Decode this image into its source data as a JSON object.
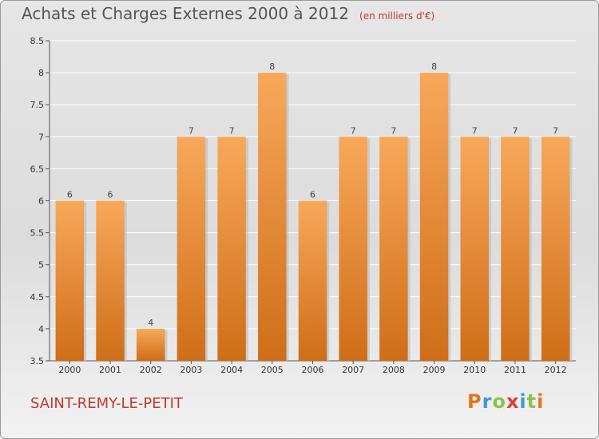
{
  "header": {
    "title": "Achats et Charges Externes 2000 à 2012",
    "subtitle": "(en milliers d'€)"
  },
  "footer": {
    "city": "SAINT-REMY-LE-PETIT",
    "logo": "Proxiti",
    "logo_colors": [
      "#e8721c",
      "#3a9ad9",
      "#8bc34a",
      "#e53935",
      "#3a9ad9",
      "#8bc34a",
      "#e8721c"
    ]
  },
  "chart_data": {
    "type": "bar",
    "title": "Achats et Charges Externes 2000 à 2012",
    "subtitle": "(en milliers d'€)",
    "categories": [
      "2000",
      "2001",
      "2002",
      "2003",
      "2004",
      "2005",
      "2006",
      "2007",
      "2008",
      "2009",
      "2010",
      "2011",
      "2012"
    ],
    "values": [
      6,
      6,
      4,
      7,
      7,
      8,
      6,
      7,
      7,
      8,
      7,
      7,
      7
    ],
    "data_labels": [
      "6",
      "6",
      "4",
      "7",
      "7",
      "8",
      "6",
      "7",
      "7",
      "8",
      "7",
      "7",
      "7"
    ],
    "yticks": [
      "3.5",
      "4",
      "4.5",
      "5",
      "5.5",
      "6",
      "6.5",
      "7",
      "7.5",
      "8",
      "8.5"
    ],
    "ylim": [
      3.5,
      8.5
    ],
    "grid": true,
    "bar_color": "#f0922f",
    "bar_color_top": "#f8a85a",
    "bar_color_bottom": "#cf6e18"
  }
}
